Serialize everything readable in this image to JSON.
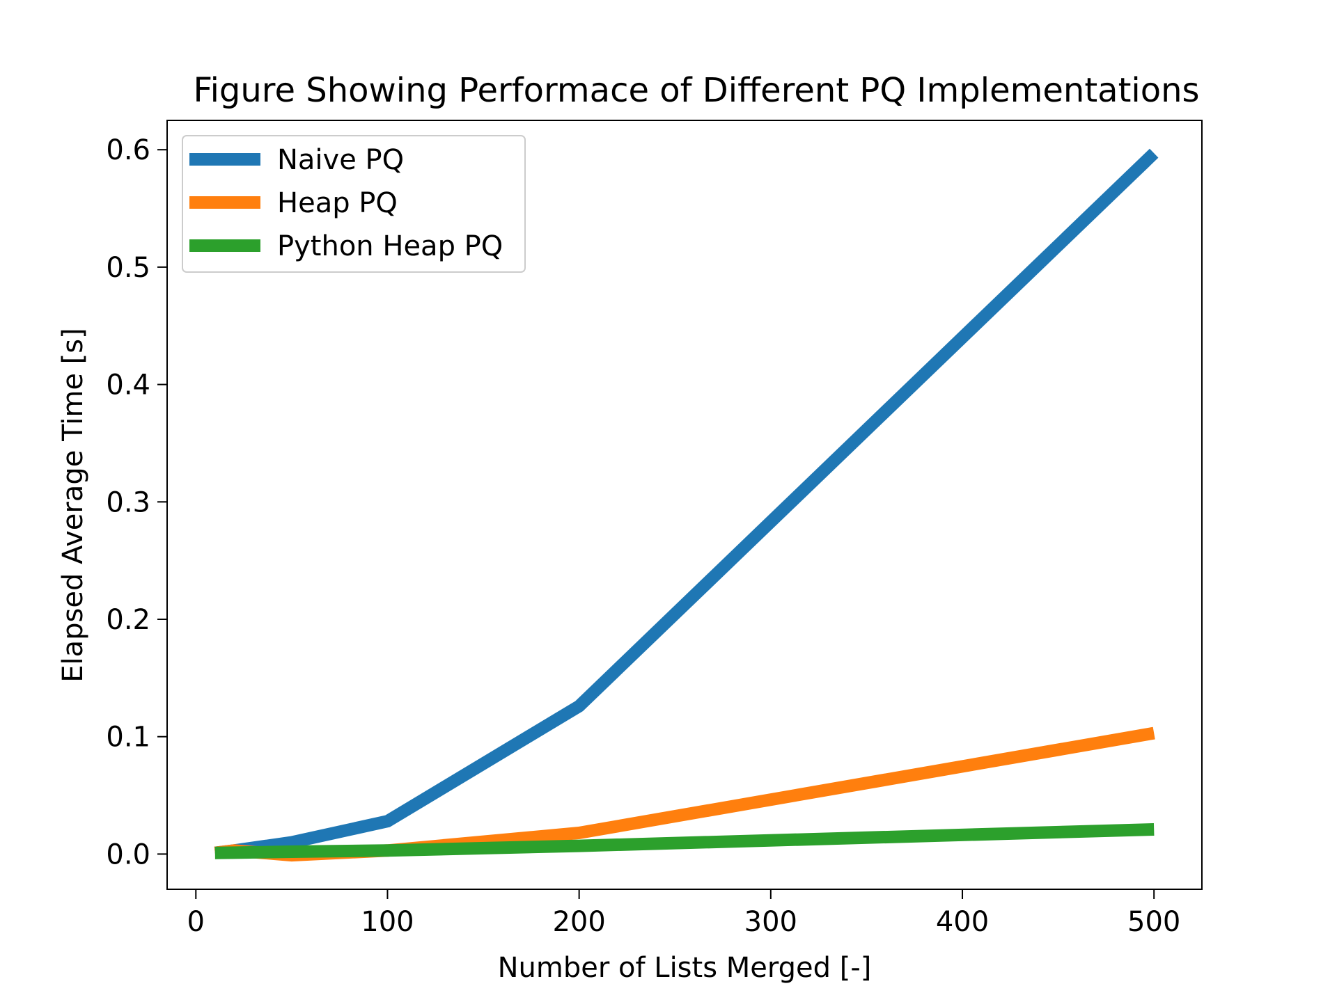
{
  "chart_data": {
    "type": "line",
    "title": "Figure Showing Performace of Different PQ Implementations",
    "xlabel": "Number of Lists Merged [-]",
    "ylabel": "Elapsed Average Time [s]",
    "xlim": [
      -15,
      525
    ],
    "ylim": [
      -0.03,
      0.625
    ],
    "xticks": [
      0,
      100,
      200,
      300,
      400,
      500
    ],
    "xtick_labels": [
      "0",
      "100",
      "200",
      "300",
      "400",
      "500"
    ],
    "yticks": [
      0.0,
      0.1,
      0.2,
      0.3,
      0.4,
      0.5,
      0.6
    ],
    "ytick_labels": [
      "0.0",
      "0.1",
      "0.2",
      "0.3",
      "0.4",
      "0.5",
      "0.6"
    ],
    "grid": false,
    "legend_position": "top-left",
    "series": [
      {
        "name": "Naive PQ",
        "color": "#1f77b4",
        "x": [
          10,
          20,
          50,
          100,
          200,
          500
        ],
        "y": [
          0.001,
          0.003,
          0.01,
          0.028,
          0.126,
          0.597
        ]
      },
      {
        "name": "Heap PQ",
        "color": "#ff7f0e",
        "x": [
          10,
          20,
          50,
          100,
          200,
          500
        ],
        "y": [
          0.001,
          0.003,
          -0.001,
          0.003,
          0.018,
          0.103
        ]
      },
      {
        "name": "Python Heap PQ",
        "color": "#2ca02c",
        "x": [
          10,
          20,
          50,
          100,
          200,
          500
        ],
        "y": [
          0.001,
          0.0012,
          0.002,
          0.003,
          0.007,
          0.021
        ]
      }
    ]
  }
}
